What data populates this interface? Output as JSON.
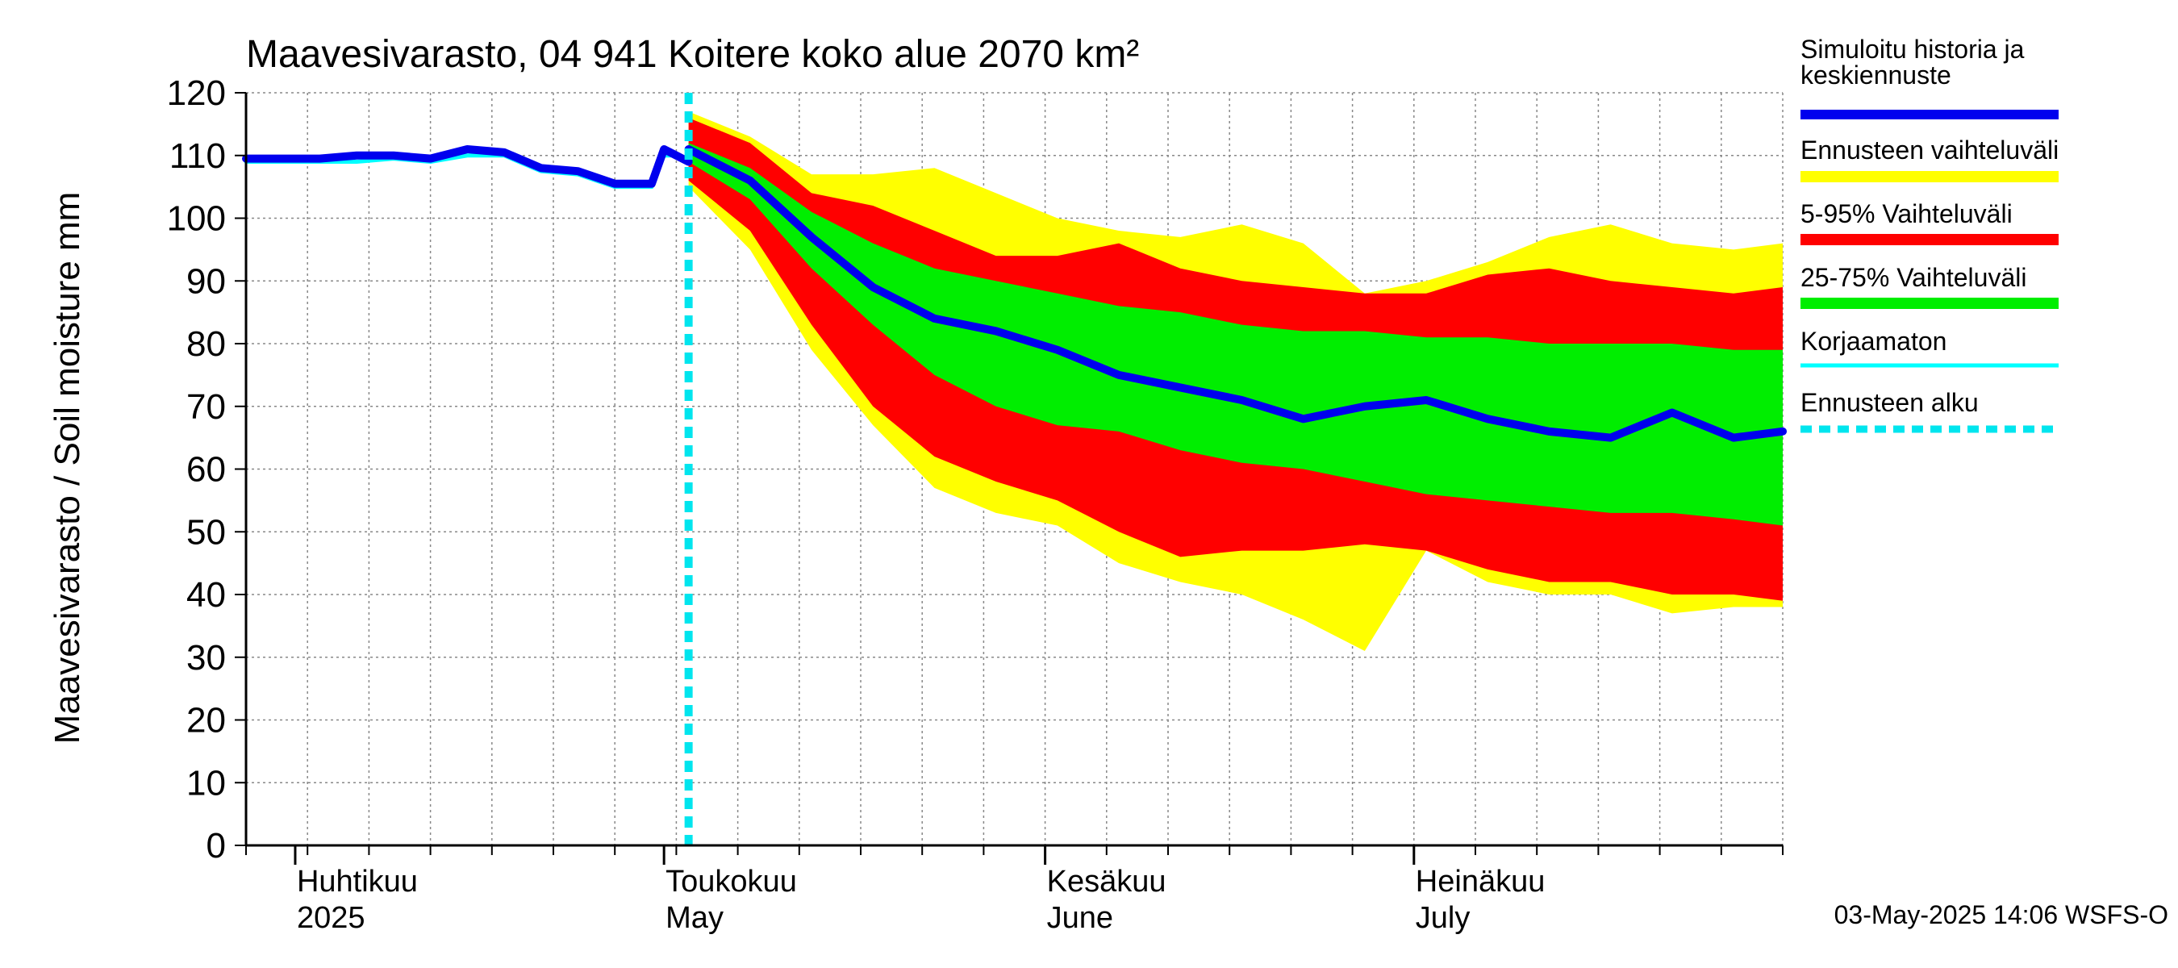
{
  "chart_data": {
    "type": "area",
    "title": "Maavesivarasto, 04 941 Koitere koko alue 2070 km²",
    "ylabel": "Maavesivarasto / Soil moisture   mm",
    "ylim": [
      0,
      120
    ],
    "y_ticks": [
      "0",
      "10",
      "20",
      "30",
      "40",
      "50",
      "60",
      "70",
      "80",
      "90",
      "100",
      "110",
      "120"
    ],
    "x_start": "2025-03-28",
    "x_end": "2025-07-31",
    "forecast_start": "2025-05-03",
    "month_labels": [
      {
        "date": "2025-04-01",
        "fi": "Huhtikuu",
        "en": "2025"
      },
      {
        "date": "2025-05-01",
        "fi": "Toukokuu",
        "en": "May"
      },
      {
        "date": "2025-06-01",
        "fi": "Kesäkuu",
        "en": "June"
      },
      {
        "date": "2025-07-01",
        "fi": "Heinäkuu",
        "en": "July"
      }
    ],
    "grid": true,
    "legend_position": "right",
    "legend": [
      {
        "label": "Simuloitu historia ja keskiennuste",
        "color": "#0000ee",
        "style": "line"
      },
      {
        "label": "Ennusteen vaihteluväli",
        "color": "#ffff00",
        "style": "band"
      },
      {
        "label": "5-95% Vaihteluväli",
        "color": "#ff0000",
        "style": "band"
      },
      {
        "label": "25-75% Vaihteluväli",
        "color": "#00ee00",
        "style": "band"
      },
      {
        "label": "Korjaamaton",
        "color": "#00ffff",
        "style": "line"
      },
      {
        "label": "Ennusteen alku",
        "color": "#00e5ee",
        "style": "dashed"
      }
    ],
    "history_dates": [
      "2025-03-28",
      "2025-03-31",
      "2025-04-03",
      "2025-04-06",
      "2025-04-09",
      "2025-04-12",
      "2025-04-15",
      "2025-04-18",
      "2025-04-21",
      "2025-04-24",
      "2025-04-27",
      "2025-04-30",
      "2025-05-01",
      "2025-05-02",
      "2025-05-03"
    ],
    "simulated_history": [
      109.5,
      109.5,
      109.5,
      110,
      110,
      109.5,
      111,
      110.5,
      108,
      107.5,
      105.5,
      105.5,
      111,
      110,
      109
    ],
    "uncorrected": [
      109,
      109,
      109,
      109,
      109.5,
      109,
      110,
      110,
      107.5,
      107,
      105,
      105,
      110,
      110,
      109
    ],
    "forecast_dates": [
      "2025-05-03",
      "2025-05-08",
      "2025-05-13",
      "2025-05-18",
      "2025-05-23",
      "2025-05-28",
      "2025-06-02",
      "2025-06-07",
      "2025-06-12",
      "2025-06-17",
      "2025-06-22",
      "2025-06-27",
      "2025-07-02",
      "2025-07-07",
      "2025-07-12",
      "2025-07-17",
      "2025-07-22",
      "2025-07-27",
      "2025-07-31"
    ],
    "median": [
      111,
      106,
      97,
      89,
      84,
      82,
      79,
      75,
      73,
      71,
      68,
      70,
      71,
      68,
      66,
      65,
      69,
      65,
      66
    ],
    "band_25_75": {
      "low": [
        109,
        103,
        92,
        83,
        75,
        70,
        67,
        66,
        63,
        61,
        60,
        58,
        56,
        55,
        54,
        53,
        53,
        52,
        51
      ],
      "high": [
        112,
        108,
        101,
        96,
        92,
        90,
        88,
        86,
        85,
        83,
        82,
        82,
        81,
        81,
        80,
        80,
        80,
        79,
        79
      ]
    },
    "band_5_95": {
      "low": [
        106,
        98,
        83,
        70,
        62,
        58,
        55,
        50,
        46,
        47,
        47,
        48,
        47,
        44,
        42,
        42,
        40,
        40,
        39
      ],
      "high": [
        116,
        112,
        104,
        102,
        98,
        94,
        94,
        96,
        92,
        90,
        89,
        88,
        88,
        91,
        92,
        90,
        89,
        88,
        89
      ]
    },
    "band_range": {
      "low": [
        105,
        95,
        79,
        67,
        57,
        53,
        51,
        45,
        42,
        40,
        36,
        31,
        47,
        42,
        40,
        40,
        37,
        38,
        38
      ],
      "high": [
        117,
        113,
        107,
        107,
        108,
        104,
        100,
        98,
        97,
        99,
        96,
        88,
        90,
        93,
        97,
        99,
        96,
        95,
        96
      ]
    }
  },
  "footer": {
    "timestamp": "03-May-2025 14:06 WSFS-O"
  }
}
